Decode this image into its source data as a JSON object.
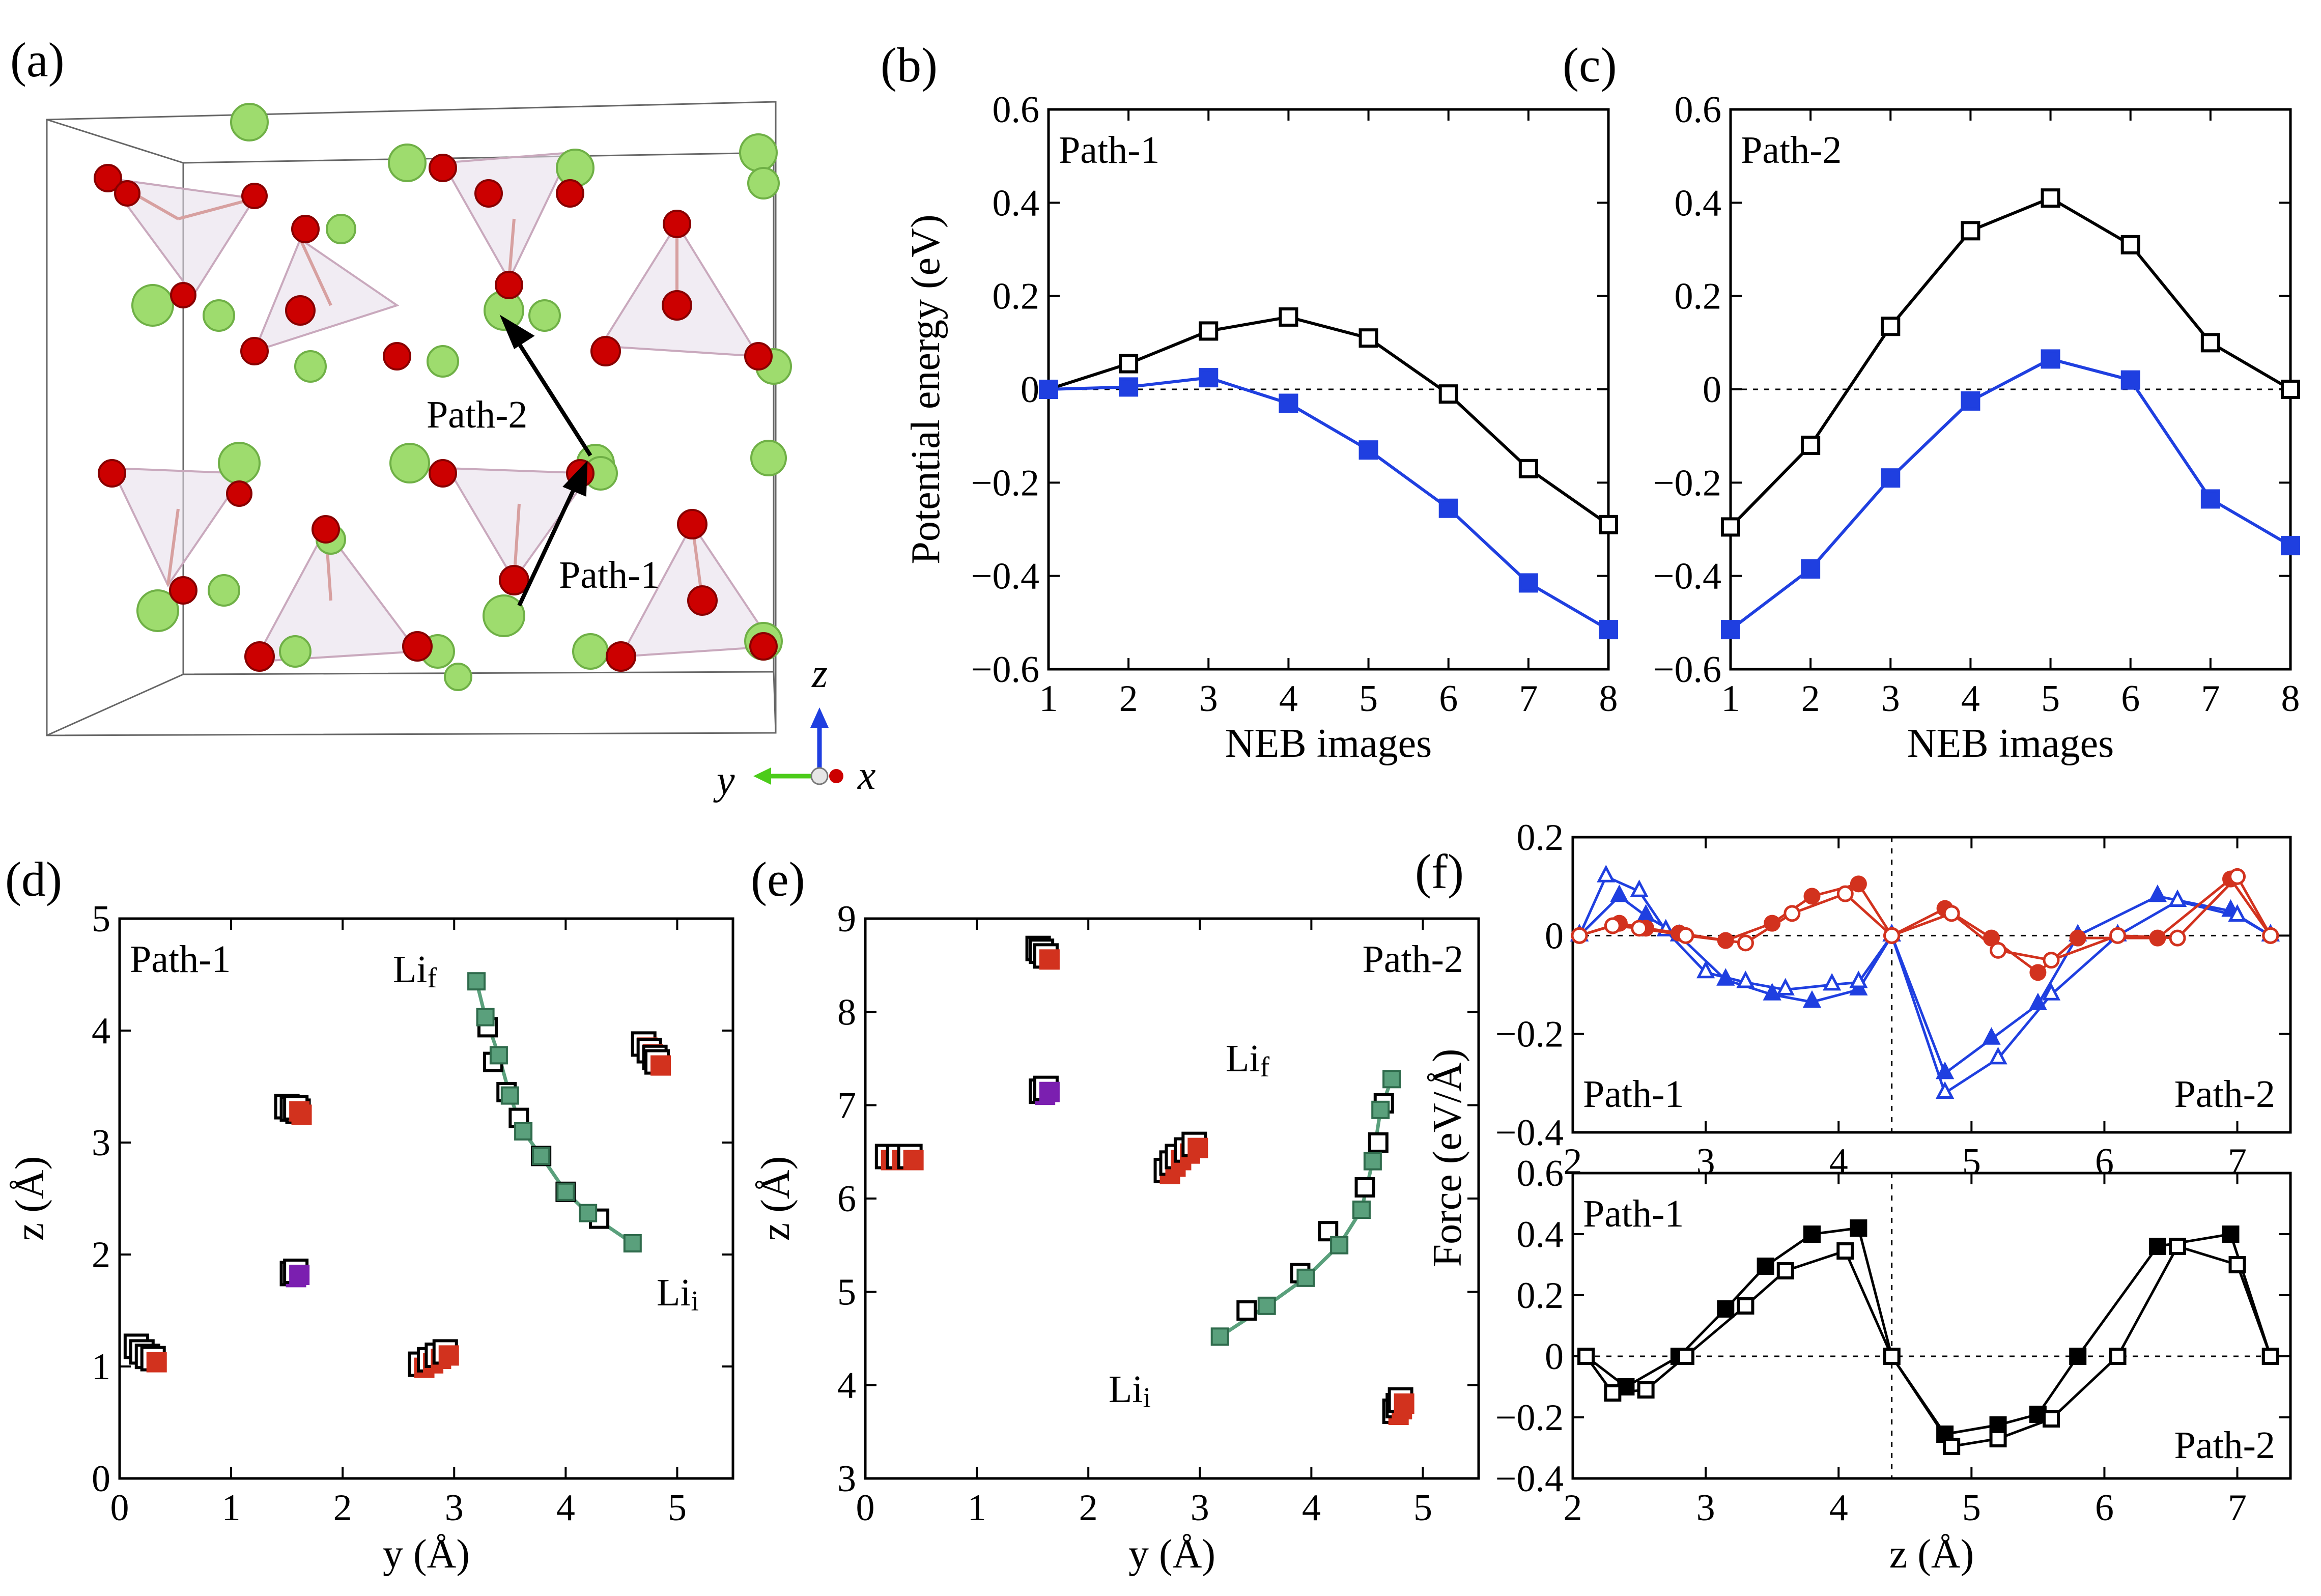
{
  "panels": {
    "a": {
      "label": "(a)",
      "path1": "Path-1",
      "path2": "Path-2",
      "axis_z": "z",
      "axis_y": "y",
      "axis_x": "x"
    },
    "d_annotations": {
      "lif": "Li",
      "lif_sub": "f",
      "lii": "Li",
      "lii_sub": "i"
    },
    "e_annotations": {
      "lif": "Li",
      "lif_sub": "f",
      "lii": "Li",
      "lii_sub": "i"
    }
  },
  "colors": {
    "black": "#000000",
    "blue": "#1f3fe0",
    "red": "#d2321e",
    "green": "#5aa07c",
    "purple": "#7b1fb0",
    "o_atom": "#cc0000",
    "li_atom": "#9edc6e"
  },
  "chart_data": [
    {
      "id": "b",
      "type": "line",
      "label": "(b)",
      "panel_text": "Path-1",
      "xlabel": "NEB images",
      "ylabel": "Potential energy (eV)",
      "xlim": [
        1,
        8
      ],
      "ylim": [
        -0.6,
        0.6
      ],
      "xticks": [
        1,
        2,
        3,
        4,
        5,
        6,
        7,
        8
      ],
      "yticks": [
        -0.6,
        -0.4,
        -0.2,
        0,
        0.2,
        0.4,
        0.6
      ],
      "ytick_labels": [
        "−0.6",
        "−0.4",
        "−0.2",
        "0",
        "0.2",
        "0.4",
        "0.6"
      ],
      "x": [
        1,
        2,
        3,
        4,
        5,
        6,
        7,
        8
      ],
      "series": [
        {
          "name": "open-black",
          "color": "#000000",
          "marker": "open-square",
          "values": [
            0.0,
            0.055,
            0.125,
            0.155,
            0.11,
            -0.01,
            -0.17,
            -0.29
          ]
        },
        {
          "name": "filled-blue",
          "color": "#1f3fe0",
          "marker": "filled-square",
          "values": [
            0.0,
            0.005,
            0.025,
            -0.03,
            -0.13,
            -0.255,
            -0.415,
            -0.515
          ]
        }
      ]
    },
    {
      "id": "c",
      "type": "line",
      "label": "(c)",
      "panel_text": "Path-2",
      "xlabel": "NEB images",
      "ylabel": "",
      "xlim": [
        1,
        8
      ],
      "ylim": [
        -0.6,
        0.6
      ],
      "xticks": [
        1,
        2,
        3,
        4,
        5,
        6,
        7,
        8
      ],
      "yticks": [
        -0.6,
        -0.4,
        -0.2,
        0,
        0.2,
        0.4,
        0.6
      ],
      "ytick_labels": [
        "−0.6",
        "−0.4",
        "−0.2",
        "0",
        "0.2",
        "0.4",
        "0.6"
      ],
      "x": [
        1,
        2,
        3,
        4,
        5,
        6,
        7,
        8
      ],
      "series": [
        {
          "name": "open-black",
          "color": "#000000",
          "marker": "open-square",
          "values": [
            -0.295,
            -0.12,
            0.135,
            0.34,
            0.41,
            0.31,
            0.1,
            0.0
          ]
        },
        {
          "name": "filled-blue",
          "color": "#1f3fe0",
          "marker": "filled-square",
          "values": [
            -0.515,
            -0.385,
            -0.19,
            -0.025,
            0.065,
            0.02,
            -0.235,
            -0.335
          ]
        }
      ]
    },
    {
      "id": "d",
      "type": "scatter",
      "label": "(d)",
      "panel_text": "Path-1",
      "xlabel": "y (Å)",
      "ylabel": "z (Å)",
      "xlim": [
        0,
        5.5
      ],
      "ylim": [
        0,
        5
      ],
      "xticks": [
        0,
        1,
        2,
        3,
        4,
        5
      ],
      "yticks": [
        0,
        1,
        2,
        3,
        4,
        5
      ],
      "clusters": [
        {
          "color": "#d2321e",
          "points": [
            [
              0.15,
              1.18
            ],
            [
              0.2,
              1.13
            ],
            [
              0.25,
              1.09
            ],
            [
              0.3,
              1.07
            ]
          ]
        },
        {
          "color": "#d2321e",
          "points": [
            [
              1.5,
              3.32
            ],
            [
              1.55,
              3.3
            ],
            [
              1.6,
              3.28
            ],
            [
              1.58,
              3.31
            ]
          ]
        },
        {
          "color": "#d2321e",
          "points": [
            [
              2.7,
              1.02
            ],
            [
              2.78,
              1.06
            ],
            [
              2.85,
              1.1
            ],
            [
              2.92,
              1.13
            ]
          ]
        },
        {
          "color": "#d2321e",
          "points": [
            [
              4.7,
              3.88
            ],
            [
              4.75,
              3.82
            ],
            [
              4.8,
              3.76
            ],
            [
              4.82,
              3.72
            ]
          ]
        },
        {
          "color": "#7b1fb0",
          "points": [
            [
              1.55,
              1.83
            ],
            [
              1.58,
              1.85
            ]
          ]
        }
      ],
      "path_filled": [
        [
          4.6,
          2.1
        ],
        [
          4.2,
          2.37
        ],
        [
          4.0,
          2.56
        ],
        [
          3.78,
          2.88
        ],
        [
          3.62,
          3.1
        ],
        [
          3.5,
          3.42
        ],
        [
          3.4,
          3.78
        ],
        [
          3.28,
          4.12
        ],
        [
          3.2,
          4.44
        ]
      ],
      "path_open": [
        [
          4.3,
          2.32
        ],
        [
          4.0,
          2.56
        ],
        [
          3.78,
          2.88
        ],
        [
          3.58,
          3.22
        ],
        [
          3.47,
          3.45
        ],
        [
          3.35,
          3.72
        ],
        [
          3.3,
          4.03
        ]
      ]
    },
    {
      "id": "e",
      "type": "scatter",
      "label": "(e)",
      "panel_text": "Path-2",
      "xlabel": "y (Å)",
      "ylabel": "z (Å)",
      "xlim": [
        0,
        5.5
      ],
      "ylim": [
        3,
        9
      ],
      "xticks": [
        0,
        1,
        2,
        3,
        4,
        5
      ],
      "yticks": [
        3,
        4,
        5,
        6,
        7,
        8,
        9
      ],
      "clusters": [
        {
          "color": "#d2321e",
          "points": [
            [
              0.2,
              6.45
            ],
            [
              0.3,
              6.45
            ],
            [
              0.4,
              6.45
            ]
          ]
        },
        {
          "color": "#d2321e",
          "points": [
            [
              1.55,
              8.68
            ],
            [
              1.58,
              8.65
            ],
            [
              1.62,
              8.6
            ]
          ]
        },
        {
          "color": "#d2321e",
          "points": [
            [
              2.7,
              6.3
            ],
            [
              2.75,
              6.38
            ],
            [
              2.8,
              6.45
            ],
            [
              2.88,
              6.52
            ],
            [
              2.95,
              6.58
            ]
          ]
        },
        {
          "color": "#d2321e",
          "points": [
            [
              4.75,
              3.72
            ],
            [
              4.78,
              3.78
            ],
            [
              4.8,
              3.84
            ]
          ]
        },
        {
          "color": "#7b1fb0",
          "points": [
            [
              1.58,
              7.15
            ],
            [
              1.62,
              7.18
            ]
          ]
        }
      ],
      "path_filled": [
        [
          3.18,
          4.52
        ],
        [
          3.6,
          4.85
        ],
        [
          3.95,
          5.15
        ],
        [
          4.25,
          5.5
        ],
        [
          4.45,
          5.88
        ],
        [
          4.55,
          6.4
        ],
        [
          4.62,
          6.95
        ],
        [
          4.72,
          7.28
        ]
      ],
      "path_open": [
        [
          3.42,
          4.8
        ],
        [
          3.9,
          5.2
        ],
        [
          4.15,
          5.65
        ],
        [
          4.48,
          6.12
        ],
        [
          4.6,
          6.6
        ],
        [
          4.65,
          7.02
        ]
      ]
    },
    {
      "id": "f_top",
      "type": "line",
      "label": "(f)",
      "panel_text_left": "Path-1",
      "panel_text_right": "Path-2",
      "xlim": [
        2,
        7.4
      ],
      "ylim": [
        -0.4,
        0.2
      ],
      "xticks": [
        2,
        3,
        4,
        5,
        6,
        7
      ],
      "yticks": [
        -0.4,
        -0.2,
        0,
        0.2
      ],
      "ytick_labels": [
        "−0.4",
        "−0.2",
        "0",
        "0.2"
      ],
      "divider_x": 4.4,
      "series": [
        {
          "name": "blue-filled-path1",
          "color": "#1f3fe0",
          "marker": "filled-triangle",
          "points": [
            [
              2.05,
              0
            ],
            [
              2.35,
              0.08
            ],
            [
              2.55,
              0.04
            ],
            [
              2.8,
              0
            ],
            [
              3.15,
              -0.09
            ],
            [
              3.5,
              -0.12
            ],
            [
              3.8,
              -0.135
            ],
            [
              4.15,
              -0.11
            ],
            [
              4.4,
              0
            ]
          ]
        },
        {
          "name": "blue-open-path1",
          "color": "#1f3fe0",
          "marker": "open-triangle",
          "points": [
            [
              2.05,
              0
            ],
            [
              2.25,
              0.12
            ],
            [
              2.5,
              0.09
            ],
            [
              2.7,
              0.01
            ],
            [
              3.0,
              -0.075
            ],
            [
              3.3,
              -0.095
            ],
            [
              3.6,
              -0.11
            ],
            [
              3.95,
              -0.1
            ],
            [
              4.15,
              -0.095
            ],
            [
              4.4,
              0
            ]
          ]
        },
        {
          "name": "blue-filled-path2",
          "color": "#1f3fe0",
          "marker": "filled-triangle",
          "points": [
            [
              4.4,
              0
            ],
            [
              4.8,
              -0.28
            ],
            [
              5.15,
              -0.21
            ],
            [
              5.5,
              -0.14
            ],
            [
              5.8,
              -0.0
            ],
            [
              6.4,
              0.08
            ],
            [
              6.95,
              0.05
            ],
            [
              7.25,
              0
            ]
          ]
        },
        {
          "name": "blue-open-path2",
          "color": "#1f3fe0",
          "marker": "open-triangle",
          "points": [
            [
              4.4,
              0
            ],
            [
              4.8,
              -0.32
            ],
            [
              5.2,
              -0.25
            ],
            [
              5.6,
              -0.12
            ],
            [
              6.1,
              -0.0
            ],
            [
              6.55,
              0.07
            ],
            [
              7.0,
              0.04
            ],
            [
              7.25,
              0
            ]
          ]
        },
        {
          "name": "red-filled-path1",
          "color": "#d2321e",
          "marker": "filled-circle",
          "points": [
            [
              2.05,
              0
            ],
            [
              2.35,
              0.025
            ],
            [
              2.55,
              0.015
            ],
            [
              2.8,
              0.005
            ],
            [
              3.15,
              -0.01
            ],
            [
              3.5,
              0.025
            ],
            [
              3.8,
              0.08
            ],
            [
              4.15,
              0.105
            ],
            [
              4.4,
              0
            ]
          ]
        },
        {
          "name": "red-open-path1",
          "color": "#d2321e",
          "marker": "open-circle",
          "points": [
            [
              2.05,
              0
            ],
            [
              2.3,
              0.02
            ],
            [
              2.5,
              0.015
            ],
            [
              2.85,
              0
            ],
            [
              3.3,
              -0.015
            ],
            [
              3.65,
              0.045
            ],
            [
              4.05,
              0.085
            ],
            [
              4.4,
              0
            ]
          ]
        },
        {
          "name": "red-filled-path2",
          "color": "#d2321e",
          "marker": "filled-circle",
          "points": [
            [
              4.4,
              0
            ],
            [
              4.8,
              0.055
            ],
            [
              5.15,
              -0.005
            ],
            [
              5.5,
              -0.075
            ],
            [
              5.8,
              -0.005
            ],
            [
              6.4,
              -0.005
            ],
            [
              6.95,
              0.115
            ],
            [
              7.25,
              0
            ]
          ]
        },
        {
          "name": "red-open-path2",
          "color": "#d2321e",
          "marker": "open-circle",
          "points": [
            [
              4.4,
              0
            ],
            [
              4.85,
              0.045
            ],
            [
              5.2,
              -0.03
            ],
            [
              5.6,
              -0.05
            ],
            [
              6.1,
              0.0
            ],
            [
              6.55,
              -0.005
            ],
            [
              7.0,
              0.12
            ],
            [
              7.25,
              0
            ]
          ]
        }
      ]
    },
    {
      "id": "f_bottom",
      "type": "line",
      "panel_text_left": "Path-1",
      "panel_text_right": "Path-2",
      "xlabel": "z (Å)",
      "ylabel": "Force (eV/Å)",
      "xlim": [
        2,
        7.4
      ],
      "ylim": [
        -0.4,
        0.6
      ],
      "xticks": [
        2,
        3,
        4,
        5,
        6,
        7
      ],
      "yticks": [
        -0.4,
        -0.2,
        0,
        0.2,
        0.4,
        0.6
      ],
      "ytick_labels": [
        "−0.4",
        "−0.2",
        "0",
        "0.2",
        "0.4",
        "0.6"
      ],
      "divider_x": 4.4,
      "series": [
        {
          "name": "black-filled",
          "color": "#000000",
          "marker": "filled-square",
          "points": [
            [
              2.1,
              0
            ],
            [
              2.4,
              -0.1
            ],
            [
              2.8,
              0
            ],
            [
              3.15,
              0.155
            ],
            [
              3.45,
              0.295
            ],
            [
              3.8,
              0.4
            ],
            [
              4.15,
              0.42
            ],
            [
              4.4,
              0
            ],
            [
              4.8,
              -0.255
            ],
            [
              5.2,
              -0.225
            ],
            [
              5.5,
              -0.19
            ],
            [
              5.8,
              0
            ],
            [
              6.4,
              0.36
            ],
            [
              6.95,
              0.4
            ],
            [
              7.25,
              0
            ]
          ]
        },
        {
          "name": "black-open",
          "color": "#000000",
          "marker": "open-square",
          "points": [
            [
              2.1,
              0
            ],
            [
              2.3,
              -0.12
            ],
            [
              2.55,
              -0.11
            ],
            [
              2.85,
              0
            ],
            [
              3.3,
              0.165
            ],
            [
              3.6,
              0.28
            ],
            [
              4.05,
              0.345
            ],
            [
              4.4,
              0
            ],
            [
              4.85,
              -0.295
            ],
            [
              5.2,
              -0.27
            ],
            [
              5.6,
              -0.205
            ],
            [
              6.1,
              0
            ],
            [
              6.55,
              0.36
            ],
            [
              7.0,
              0.3
            ],
            [
              7.25,
              0
            ]
          ]
        }
      ]
    }
  ]
}
